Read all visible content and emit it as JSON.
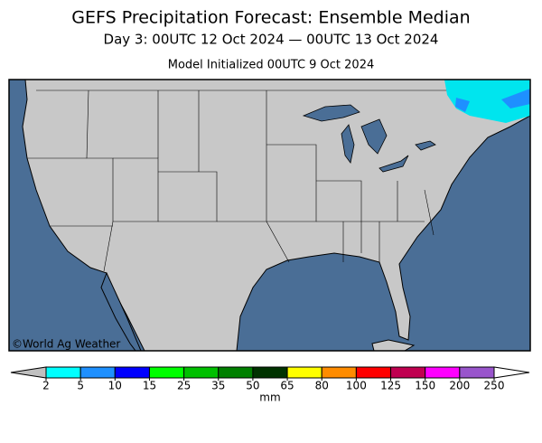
{
  "title": "GEFS Precipitation Forecast: Ensemble Median",
  "subtitle": "Day 3: 00UTC 12 Oct 2024 — 00UTC 13 Oct 2024",
  "initialized": "Model Initialized 00UTC 9 Oct 2024",
  "credit": "©World Ag Weather",
  "colorbar": {
    "ticks": [
      2,
      5,
      10,
      15,
      25,
      35,
      50,
      65,
      80,
      100,
      125,
      150,
      200,
      250
    ],
    "colors": [
      "#00ffff",
      "#1e90ff",
      "#0000ff",
      "#00ff00",
      "#00c000",
      "#008000",
      "#003300",
      "#ffff00",
      "#ff8c00",
      "#ff0000",
      "#c00050",
      "#ff00ff",
      "#9955cc"
    ],
    "under_color": "#c0c0c0",
    "over_color": "#ffffff",
    "unit": "mm"
  }
}
